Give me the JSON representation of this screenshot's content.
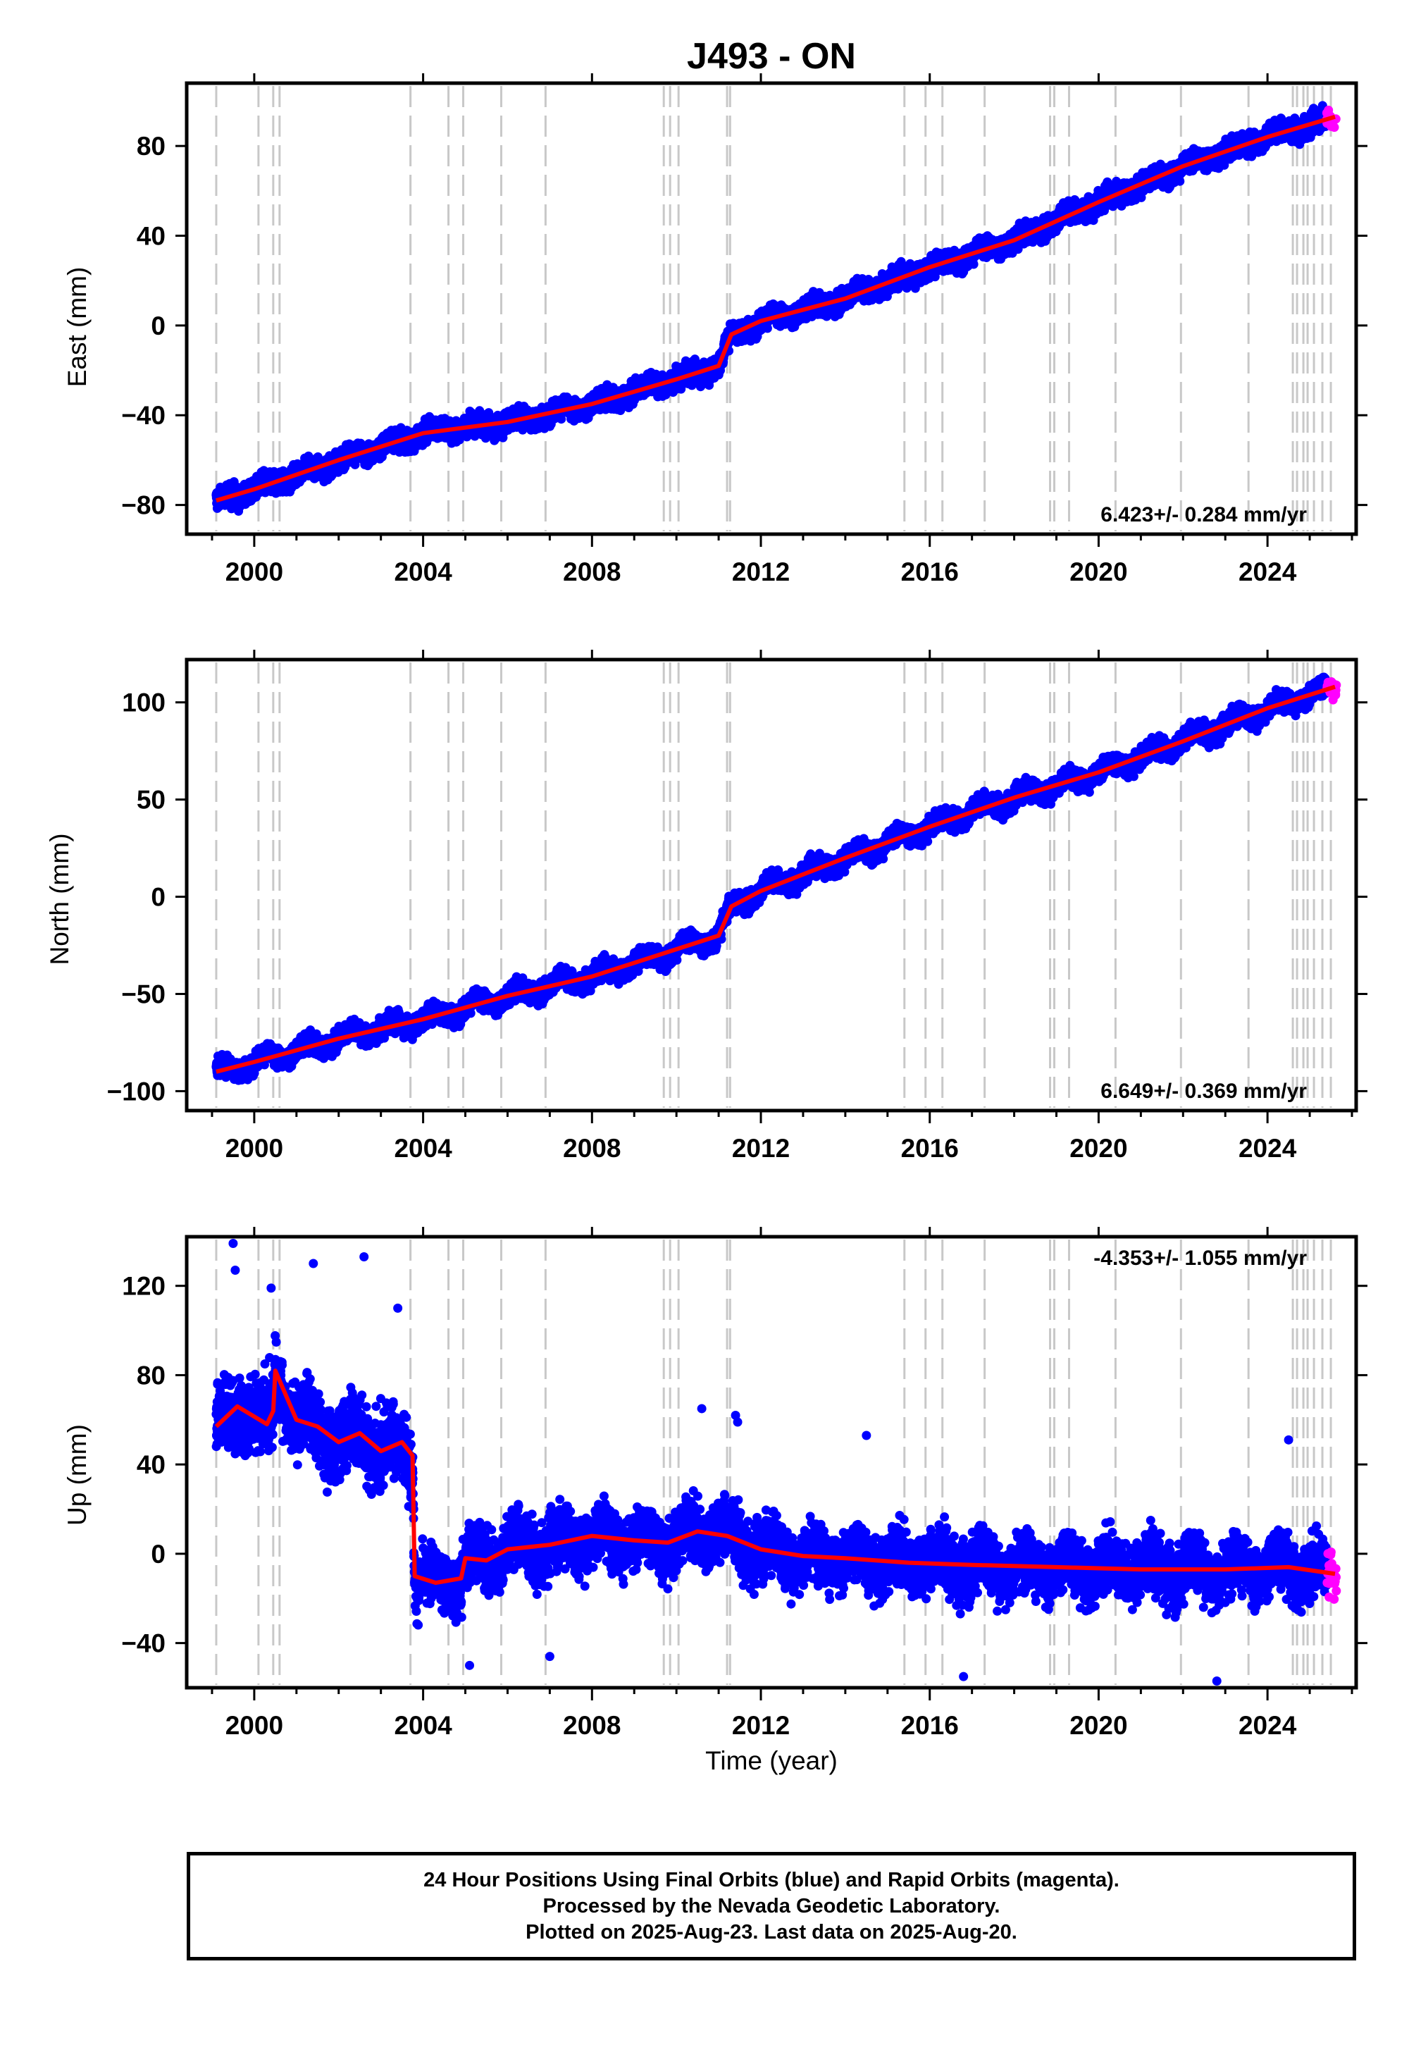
{
  "title": "J493 - ON",
  "xlabel": "Time (year)",
  "colors": {
    "final_orbits": "#0000ff",
    "rapid_orbits": "#ff00ff",
    "model_fit": "#ff0000",
    "event_lines": "#c8c8c8",
    "frame": "#000000"
  },
  "notes": [
    "24 Hour Positions Using Final Orbits (blue) and Rapid Orbits (magenta).",
    "Processed by the Nevada Geodetic Laboratory.",
    "Plotted on 2025-Aug-23. Last data on 2025-Aug-20."
  ],
  "chart_data": [
    {
      "type": "scatter",
      "component": "east",
      "ylabel": "East (mm)",
      "rate_label": "6.423+/- 0.284 mm/yr",
      "rate_position": "bottom-right",
      "xlim": [
        1998.4,
        2026.1
      ],
      "ylim": [
        -93,
        108
      ],
      "x_ticks": [
        2000,
        2004,
        2008,
        2012,
        2016,
        2020,
        2024
      ],
      "y_ticks": [
        -80,
        -40,
        0,
        40,
        80
      ],
      "grid": false,
      "data_start": 1999.1,
      "final_orbits_end": 2025.4,
      "last_data": 2025.63,
      "rate_mm_per_yr": 6.423,
      "value_at_start": -79,
      "noise_mm": 3.2,
      "seasonal_amp_mm": 1.6,
      "model_fit": {
        "x": [
          1999.1,
          2000.0,
          2002.0,
          2004.0,
          2006.0,
          2008.0,
          2010.0,
          2011.0,
          2011.3,
          2012.0,
          2014.0,
          2016.0,
          2018.0,
          2020.0,
          2022.0,
          2024.0,
          2025.6
        ],
        "y": [
          -78,
          -73,
          -60,
          -48,
          -43,
          -35,
          -24,
          -18,
          -4,
          2,
          12,
          26,
          38,
          55,
          71,
          84,
          93
        ]
      }
    },
    {
      "type": "scatter",
      "component": "north",
      "ylabel": "North (mm)",
      "rate_label": "6.649+/- 0.369 mm/yr",
      "rate_position": "bottom-right",
      "xlim": [
        1998.4,
        2026.1
      ],
      "ylim": [
        -110,
        122
      ],
      "x_ticks": [
        2000,
        2004,
        2008,
        2012,
        2016,
        2020,
        2024
      ],
      "y_ticks": [
        -100,
        -50,
        0,
        50,
        100
      ],
      "grid": false,
      "data_start": 1999.1,
      "final_orbits_end": 2025.4,
      "last_data": 2025.63,
      "rate_mm_per_yr": 6.649,
      "value_at_start": -89,
      "noise_mm": 3.5,
      "seasonal_amp_mm": 3.0,
      "model_fit": {
        "x": [
          1999.1,
          2000.0,
          2002.0,
          2004.0,
          2006.0,
          2008.0,
          2010.0,
          2011.0,
          2011.3,
          2012.0,
          2014.0,
          2016.0,
          2018.0,
          2020.0,
          2022.0,
          2024.0,
          2025.6
        ],
        "y": [
          -90,
          -85,
          -73,
          -63,
          -51,
          -41,
          -27,
          -20,
          -5,
          3,
          20,
          36,
          51,
          64,
          80,
          97,
          108
        ]
      }
    },
    {
      "type": "scatter",
      "component": "up",
      "ylabel": "Up (mm)",
      "rate_label": "-4.353+/- 1.055 mm/yr",
      "rate_position": "top-right",
      "xlim": [
        1998.4,
        2026.1
      ],
      "ylim": [
        -60,
        142
      ],
      "x_ticks": [
        2000,
        2004,
        2008,
        2012,
        2016,
        2020,
        2024
      ],
      "y_ticks": [
        -40,
        0,
        40,
        80,
        120
      ],
      "grid": false,
      "data_start": 1999.1,
      "final_orbits_end": 2025.4,
      "last_data": 2025.63,
      "rate_mm_per_yr": -4.353,
      "value_at_start": 60,
      "noise_mm": 9,
      "seasonal_amp_mm": 5,
      "model_fit": {
        "x": [
          1999.1,
          1999.6,
          2000.3,
          2000.45,
          2000.5,
          2001.0,
          2001.5,
          2002.0,
          2002.5,
          2003.0,
          2003.5,
          2003.75,
          2003.8,
          2004.3,
          2004.9,
          2005.0,
          2005.5,
          2006.0,
          2007.0,
          2008.0,
          2009.0,
          2009.8,
          2010.5,
          2011.2,
          2012.0,
          2013.0,
          2014.0,
          2015.5,
          2017.0,
          2019.0,
          2021.0,
          2023.0,
          2024.5,
          2025.6
        ],
        "y": [
          57,
          66,
          58,
          64,
          82,
          60,
          57,
          50,
          54,
          46,
          50,
          44,
          -10,
          -13,
          -11,
          -2,
          -3,
          2,
          4,
          8,
          6,
          5,
          10,
          8,
          2,
          -1,
          -2,
          -4,
          -5,
          -6,
          -7,
          -7,
          -6,
          -9
        ]
      },
      "outliers": [
        {
          "x": 1999.5,
          "y": 139
        },
        {
          "x": 1999.55,
          "y": 127
        },
        {
          "x": 2000.4,
          "y": 119
        },
        {
          "x": 2001.4,
          "y": 130
        },
        {
          "x": 2002.6,
          "y": 133
        },
        {
          "x": 2003.4,
          "y": 110
        },
        {
          "x": 2005.1,
          "y": -50
        },
        {
          "x": 2007.0,
          "y": -46
        },
        {
          "x": 2010.6,
          "y": 65
        },
        {
          "x": 2011.4,
          "y": 62
        },
        {
          "x": 2011.45,
          "y": 59
        },
        {
          "x": 2014.5,
          "y": 53
        },
        {
          "x": 2016.8,
          "y": -55
        },
        {
          "x": 2022.8,
          "y": -57
        },
        {
          "x": 2024.5,
          "y": 51
        }
      ]
    }
  ],
  "event_lines": [
    1999.1,
    2000.1,
    2000.45,
    2000.6,
    2003.7,
    2004.6,
    2004.95,
    2005.85,
    2006.9,
    2009.7,
    2009.85,
    2010.05,
    2011.2,
    2011.27,
    2015.4,
    2015.9,
    2016.3,
    2017.3,
    2018.85,
    2018.95,
    2019.3,
    2020.4,
    2021.95,
    2023.55,
    2024.6,
    2024.7,
    2024.85,
    2024.95,
    2025.1,
    2025.3,
    2025.5
  ]
}
